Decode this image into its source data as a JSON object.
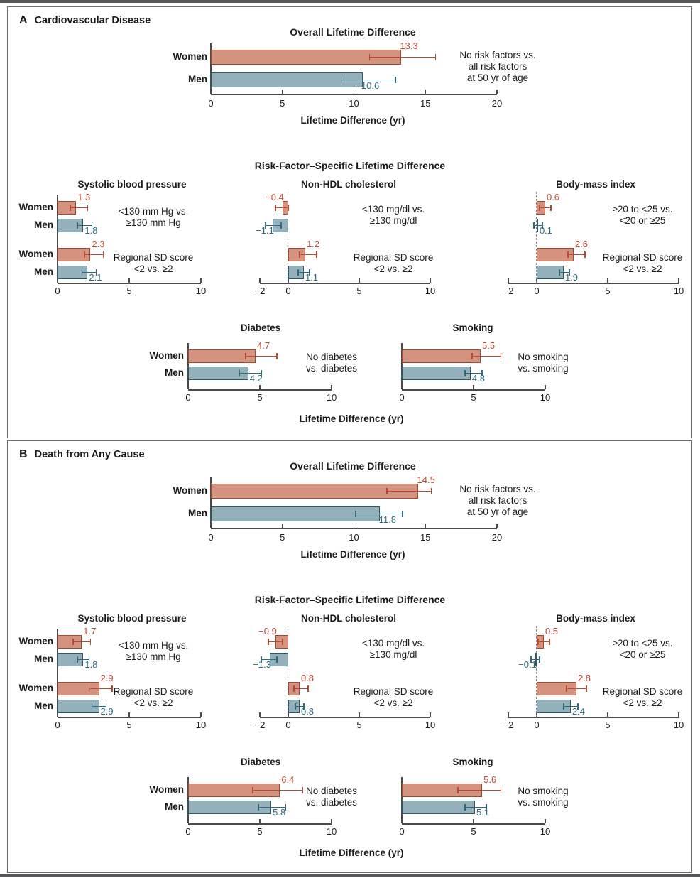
{
  "colors": {
    "women_fill": "#D4937E",
    "women_edge": "#9C4B35",
    "women_accent": "#BC4A32",
    "men_fill": "#93B0BB",
    "men_edge": "#2F5967",
    "men_accent": "#2C6C7E",
    "axis": "#4a4a4a",
    "panel_border": "#6a6c6e"
  },
  "panels": [
    {
      "letter": "A",
      "title": "Cardiovascular Disease",
      "overall_title": "Overall Lifetime Difference",
      "risk_title": "Risk-Factor–Specific Lifetime Difference",
      "axis_label": "Lifetime Difference (yr)"
    },
    {
      "letter": "B",
      "title": "Death from Any Cause",
      "overall_title": "Overall Lifetime Difference",
      "risk_title": "Risk-Factor–Specific Lifetime Difference",
      "axis_label": "Lifetime Difference (yr)"
    }
  ],
  "chart_data": [
    {
      "panel": "A",
      "slot": "overall",
      "type": "bar",
      "title": "Overall Lifetime Difference",
      "xlim": [
        0,
        20
      ],
      "xlabel": "Lifetime Difference (yr)",
      "ticks": [
        {
          "v": 0,
          "t": "0"
        },
        {
          "v": 5,
          "t": "5"
        },
        {
          "v": 10,
          "t": "10"
        },
        {
          "v": 15,
          "t": "15"
        },
        {
          "v": 20,
          "t": "20"
        }
      ],
      "groups": [
        {
          "annotation": [
            "No risk factors vs.",
            "all risk factors",
            "at 50 yr of age"
          ],
          "bars": [
            {
              "label": "Women",
              "value": 13.3,
              "display": "13.3",
              "ci": [
                11.1,
                15.7
              ]
            },
            {
              "label": "Men",
              "value": 10.6,
              "display": "10.6",
              "ci": [
                9.1,
                12.9
              ]
            }
          ]
        }
      ]
    },
    {
      "panel": "A",
      "slot": "sbp",
      "type": "bar",
      "title": "Systolic blood pressure",
      "xlim": [
        0,
        10
      ],
      "ticks": [
        {
          "v": 0,
          "t": "0"
        },
        {
          "v": 5,
          "t": "5"
        },
        {
          "v": 10,
          "t": "10"
        }
      ],
      "groups": [
        {
          "annotation": [
            "<130 mm Hg vs.",
            "≥130 mm Hg"
          ],
          "bars": [
            {
              "label": "Women",
              "value": 1.3,
              "display": "1.3",
              "ci": [
                0.9,
                2.1
              ]
            },
            {
              "label": "Men",
              "value": 1.8,
              "display": "1.8",
              "ci": [
                1.4,
                2.4
              ]
            }
          ]
        },
        {
          "annotation": [
            "Regional SD score",
            "<2 vs. ≥2"
          ],
          "bars": [
            {
              "label": "Women",
              "value": 2.3,
              "display": "2.3",
              "ci": [
                1.9,
                3.2
              ]
            },
            {
              "label": "Men",
              "value": 2.1,
              "display": "2.1",
              "ci": [
                1.7,
                2.7
              ]
            }
          ]
        }
      ]
    },
    {
      "panel": "A",
      "slot": "nonhdl",
      "type": "bar",
      "title": "Non-HDL cholesterol",
      "xlim": [
        -2,
        10
      ],
      "ticks": [
        {
          "v": -2,
          "t": "−2"
        },
        {
          "v": 0,
          "t": "0"
        },
        {
          "v": 5,
          "t": "5"
        },
        {
          "v": 10,
          "t": "10"
        }
      ],
      "groups": [
        {
          "annotation": [
            "<130 mg/dl vs.",
            "≥130 mg/dl"
          ],
          "bars": [
            {
              "label": "Women",
              "value": -0.4,
              "display": "−0.4",
              "ci": [
                -0.9,
                0.0
              ]
            },
            {
              "label": "Men",
              "value": -1.1,
              "display": "−1.1",
              "ci": [
                -1.6,
                -0.5
              ]
            }
          ]
        },
        {
          "annotation": [
            "Regional SD score",
            "<2 vs. ≥2"
          ],
          "bars": [
            {
              "label": "Women",
              "value": 1.2,
              "display": "1.2",
              "ci": [
                0.8,
                2.0
              ]
            },
            {
              "label": "Men",
              "value": 1.1,
              "display": "1.1",
              "ci": [
                0.7,
                1.5
              ]
            }
          ]
        }
      ]
    },
    {
      "panel": "A",
      "slot": "bmi",
      "type": "bar",
      "title": "Body-mass index",
      "xlim": [
        -2,
        10
      ],
      "ticks": [
        {
          "v": -2,
          "t": "−2"
        },
        {
          "v": 0,
          "t": "0"
        },
        {
          "v": 5,
          "t": "5"
        },
        {
          "v": 10,
          "t": "10"
        }
      ],
      "groups": [
        {
          "annotation": [
            "≥20 to <25 vs.",
            "<20 or ≥25"
          ],
          "bars": [
            {
              "label": "Women",
              "value": 0.6,
              "display": "0.6",
              "ci": [
                0.2,
                1.0
              ]
            },
            {
              "label": "Men",
              "value": 0.1,
              "display": "0.1",
              "ci": [
                -0.2,
                0.4
              ]
            }
          ]
        },
        {
          "annotation": [
            "Regional SD score",
            "<2 vs. ≥2"
          ],
          "bars": [
            {
              "label": "Women",
              "value": 2.6,
              "display": "2.6",
              "ci": [
                2.2,
                3.4
              ]
            },
            {
              "label": "Men",
              "value": 1.9,
              "display": "1.9",
              "ci": [
                1.6,
                2.3
              ]
            }
          ]
        }
      ]
    },
    {
      "panel": "A",
      "slot": "diabetes",
      "type": "bar",
      "title": "Diabetes",
      "xlim": [
        0,
        10
      ],
      "ticks": [
        {
          "v": 0,
          "t": "0"
        },
        {
          "v": 5,
          "t": "5"
        },
        {
          "v": 10,
          "t": "10"
        }
      ],
      "groups": [
        {
          "annotation": [
            "No diabetes",
            "vs. diabetes"
          ],
          "bars": [
            {
              "label": "Women",
              "value": 4.7,
              "display": "4.7",
              "ci": [
                4.0,
                6.2
              ]
            },
            {
              "label": "Men",
              "value": 4.2,
              "display": "4.2",
              "ci": [
                3.6,
                5.1
              ]
            }
          ]
        }
      ]
    },
    {
      "panel": "A",
      "slot": "smoking",
      "type": "bar",
      "title": "Smoking",
      "xlim": [
        0,
        10
      ],
      "ticks": [
        {
          "v": 0,
          "t": "0"
        },
        {
          "v": 5,
          "t": "5"
        },
        {
          "v": 10,
          "t": "10"
        }
      ],
      "groups": [
        {
          "annotation": [
            "No smoking",
            "vs. smoking"
          ],
          "bars": [
            {
              "label": "Women",
              "value": 5.5,
              "display": "5.5",
              "ci": [
                4.9,
                6.9
              ]
            },
            {
              "label": "Men",
              "value": 4.8,
              "display": "4.8",
              "ci": [
                4.4,
                5.6
              ]
            }
          ]
        }
      ]
    },
    {
      "panel": "B",
      "slot": "overall",
      "type": "bar",
      "title": "Overall Lifetime Difference",
      "xlim": [
        0,
        20
      ],
      "xlabel": "Lifetime Difference (yr)",
      "ticks": [
        {
          "v": 0,
          "t": "0"
        },
        {
          "v": 5,
          "t": "5"
        },
        {
          "v": 10,
          "t": "10"
        },
        {
          "v": 15,
          "t": "15"
        },
        {
          "v": 20,
          "t": "20"
        }
      ],
      "groups": [
        {
          "annotation": [
            "No risk factors vs.",
            "all risk factors",
            "at 50 yr of age"
          ],
          "bars": [
            {
              "label": "Women",
              "value": 14.5,
              "display": "14.5",
              "ci": [
                12.3,
                15.4
              ]
            },
            {
              "label": "Men",
              "value": 11.8,
              "display": "11.8",
              "ci": [
                10.1,
                13.4
              ]
            }
          ]
        }
      ]
    },
    {
      "panel": "B",
      "slot": "sbp",
      "type": "bar",
      "title": "Systolic blood pressure",
      "xlim": [
        0,
        10
      ],
      "ticks": [
        {
          "v": 0,
          "t": "0"
        },
        {
          "v": 5,
          "t": "5"
        },
        {
          "v": 10,
          "t": "10"
        }
      ],
      "groups": [
        {
          "annotation": [
            "<130 mm Hg vs.",
            "≥130 mm Hg"
          ],
          "bars": [
            {
              "label": "Women",
              "value": 1.7,
              "display": "1.7",
              "ci": [
                1.1,
                2.3
              ]
            },
            {
              "label": "Men",
              "value": 1.8,
              "display": "1.8",
              "ci": [
                1.4,
                2.2
              ]
            }
          ]
        },
        {
          "annotation": [
            "Regional SD score",
            "<2 vs. ≥2"
          ],
          "bars": [
            {
              "label": "Women",
              "value": 2.9,
              "display": "2.9",
              "ci": [
                2.2,
                3.8
              ]
            },
            {
              "label": "Men",
              "value": 2.9,
              "display": "2.9",
              "ci": [
                2.4,
                3.4
              ]
            }
          ]
        }
      ]
    },
    {
      "panel": "B",
      "slot": "nonhdl",
      "type": "bar",
      "title": "Non-HDL cholesterol",
      "xlim": [
        -2,
        10
      ],
      "ticks": [
        {
          "v": -2,
          "t": "−2"
        },
        {
          "v": 0,
          "t": "0"
        },
        {
          "v": 5,
          "t": "5"
        },
        {
          "v": 10,
          "t": "10"
        }
      ],
      "groups": [
        {
          "annotation": [
            "<130 mg/dl vs.",
            "≥130 mg/dl"
          ],
          "bars": [
            {
              "label": "Women",
              "value": -0.9,
              "display": "−0.9",
              "ci": [
                -1.4,
                -0.4
              ]
            },
            {
              "label": "Men",
              "value": -1.3,
              "display": "−1.3",
              "ci": [
                -1.9,
                -0.8
              ]
            }
          ]
        },
        {
          "annotation": [
            "Regional SD score",
            "<2 vs. ≥2"
          ],
          "bars": [
            {
              "label": "Women",
              "value": 0.8,
              "display": "0.8",
              "ci": [
                0.4,
                1.4
              ]
            },
            {
              "label": "Men",
              "value": 0.8,
              "display": "0.8",
              "ci": [
                0.5,
                1.1
              ]
            }
          ]
        }
      ]
    },
    {
      "panel": "B",
      "slot": "bmi",
      "type": "bar",
      "title": "Body-mass index",
      "xlim": [
        -2,
        10
      ],
      "ticks": [
        {
          "v": -2,
          "t": "−2"
        },
        {
          "v": 0,
          "t": "0"
        },
        {
          "v": 5,
          "t": "5"
        },
        {
          "v": 10,
          "t": "10"
        }
      ],
      "groups": [
        {
          "annotation": [
            "≥20 to <25 vs.",
            "<20 or ≥25"
          ],
          "bars": [
            {
              "label": "Women",
              "value": 0.5,
              "display": "0.5",
              "ci": [
                0.1,
                0.9
              ]
            },
            {
              "label": "Men",
              "value": -0.1,
              "display": "−0.1",
              "ci": [
                -0.4,
                0.2
              ]
            }
          ]
        },
        {
          "annotation": [
            "Regional SD score",
            "<2 vs. ≥2"
          ],
          "bars": [
            {
              "label": "Women",
              "value": 2.8,
              "display": "2.8",
              "ci": [
                2.1,
                3.5
              ]
            },
            {
              "label": "Men",
              "value": 2.4,
              "display": "2.4",
              "ci": [
                1.9,
                2.9
              ]
            }
          ]
        }
      ]
    },
    {
      "panel": "B",
      "slot": "diabetes",
      "type": "bar",
      "title": "Diabetes",
      "xlim": [
        0,
        10
      ],
      "ticks": [
        {
          "v": 0,
          "t": "0"
        },
        {
          "v": 5,
          "t": "5"
        },
        {
          "v": 10,
          "t": "10"
        }
      ],
      "groups": [
        {
          "annotation": [
            "No diabetes",
            "vs. diabetes"
          ],
          "bars": [
            {
              "label": "Women",
              "value": 6.4,
              "display": "6.4",
              "ci": [
                4.5,
                8.0
              ]
            },
            {
              "label": "Men",
              "value": 5.8,
              "display": "5.8",
              "ci": [
                4.9,
                6.8
              ]
            }
          ]
        }
      ]
    },
    {
      "panel": "B",
      "slot": "smoking",
      "type": "bar",
      "title": "Smoking",
      "xlim": [
        0,
        10
      ],
      "ticks": [
        {
          "v": 0,
          "t": "0"
        },
        {
          "v": 5,
          "t": "5"
        },
        {
          "v": 10,
          "t": "10"
        }
      ],
      "groups": [
        {
          "annotation": [
            "No smoking",
            "vs. smoking"
          ],
          "bars": [
            {
              "label": "Women",
              "value": 5.6,
              "display": "5.6",
              "ci": [
                3.9,
                6.9
              ]
            },
            {
              "label": "Men",
              "value": 5.1,
              "display": "5.1",
              "ci": [
                4.4,
                5.9
              ]
            }
          ]
        }
      ]
    }
  ]
}
